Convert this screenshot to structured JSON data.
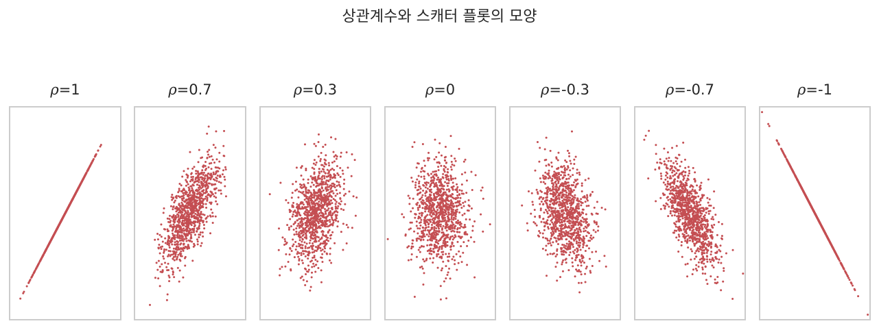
{
  "suptitle": "상관계수와 스캐터 플롯의 모양",
  "colors": {
    "points": "#c44e52",
    "frame": "#cccccc",
    "text": "#262626"
  },
  "chart_data": [
    {
      "type": "scatter",
      "title_symbol": "ρ",
      "title_value": "=1",
      "rho": 1,
      "n_points": 1000,
      "xlim": [
        -4,
        4
      ],
      "ylim": [
        -4,
        4
      ],
      "grid": false
    },
    {
      "type": "scatter",
      "title_symbol": "ρ",
      "title_value": "=0.7",
      "rho": 0.7,
      "n_points": 1000,
      "xlim": [
        -4,
        4
      ],
      "ylim": [
        -4,
        4
      ],
      "grid": false
    },
    {
      "type": "scatter",
      "title_symbol": "ρ",
      "title_value": "=0.3",
      "rho": 0.3,
      "n_points": 1000,
      "xlim": [
        -4,
        4
      ],
      "ylim": [
        -4,
        4
      ],
      "grid": false
    },
    {
      "type": "scatter",
      "title_symbol": "ρ",
      "title_value": "=0",
      "rho": 0,
      "n_points": 1000,
      "xlim": [
        -4,
        4
      ],
      "ylim": [
        -4,
        4
      ],
      "grid": false
    },
    {
      "type": "scatter",
      "title_symbol": "ρ",
      "title_value": "=-0.3",
      "rho": -0.3,
      "n_points": 1000,
      "xlim": [
        -4,
        4
      ],
      "ylim": [
        -4,
        4
      ],
      "grid": false
    },
    {
      "type": "scatter",
      "title_symbol": "ρ",
      "title_value": "=-0.7",
      "rho": -0.7,
      "n_points": 1000,
      "xlim": [
        -4,
        4
      ],
      "ylim": [
        -4,
        4
      ],
      "grid": false
    },
    {
      "type": "scatter",
      "title_symbol": "ρ",
      "title_value": "=-1",
      "rho": -1,
      "n_points": 1000,
      "xlim": [
        -4,
        4
      ],
      "ylim": [
        -4,
        4
      ],
      "grid": false
    }
  ]
}
